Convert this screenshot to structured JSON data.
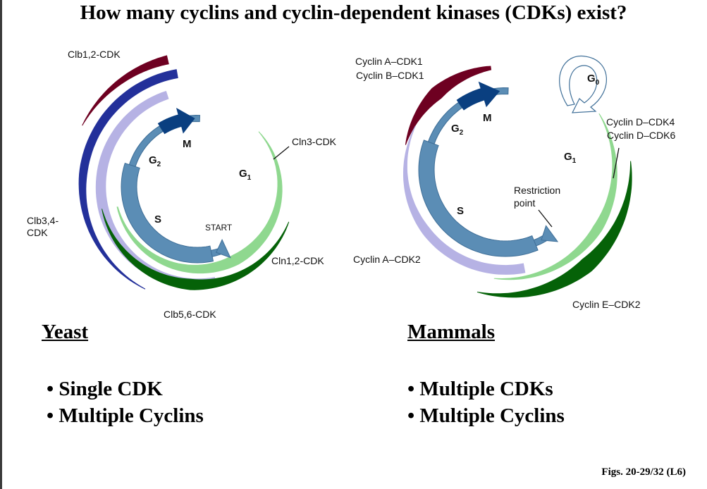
{
  "title": "How many cyclins and cyclin-dependent kinases (CDKs) exist?",
  "yeast": {
    "heading": "Yeast",
    "bullets": [
      "• Single CDK",
      "• Multiple Cyclins"
    ],
    "labels": {
      "clb12": "Clb1,2-CDK",
      "clb34_line1": "Clb3,4-",
      "clb34_line2": "CDK",
      "clb56": "Clb5,6-CDK",
      "cln3": "Cln3-CDK",
      "cln12": "Cln1,2-CDK",
      "start": "START"
    },
    "phases": {
      "m": "M",
      "g2": "G",
      "g2_sub": "2",
      "g1": "G",
      "g1_sub": "1",
      "s": "S"
    }
  },
  "mammals": {
    "heading": "Mammals",
    "bullets": [
      "• Multiple CDKs",
      "• Multiple Cyclins"
    ],
    "labels": {
      "cyclinA_cdk1": "Cyclin A–CDK1",
      "cyclinB_cdk1": "Cyclin B–CDK1",
      "cyclinD_cdk4": "Cyclin D–CDK4",
      "cyclinD_cdk6": "Cyclin D–CDK6",
      "cyclinA_cdk2": "Cyclin A–CDK2",
      "cyclinE_cdk2": "Cyclin E–CDK2",
      "restriction_1": "Restriction",
      "restriction_2": "point"
    },
    "phases": {
      "m": "M",
      "g2": "G",
      "g2_sub": "2",
      "g1": "G",
      "g1_sub": "1",
      "s": "S",
      "g0": "G",
      "g0_sub": "0"
    }
  },
  "caption": "Figs. 20-29/32 (L6)",
  "colors": {
    "ring": "#5b8db5",
    "ring_stroke": "#3f6f98",
    "m_phase": "#0a3f80",
    "maroon": "#6e0021",
    "dark_blue": "#23309a",
    "lavender": "#b6b2e4",
    "light_green": "#8fd88f",
    "dark_green": "#056208"
  }
}
